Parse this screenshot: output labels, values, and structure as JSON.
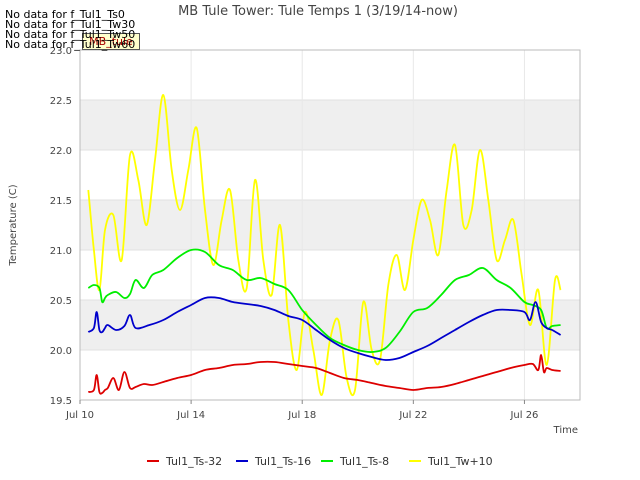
{
  "no_data_notes": [
    "No data for f_Tul1_Ts0",
    "No data for f_Tul1_Tw30",
    "No data for f_Tul1_Tw50",
    "No data for f_Tul1_Tw60"
  ],
  "badge": "MB_tule",
  "chart_data": {
    "type": "line",
    "title": "MB Tule Tower: Tule Temps 1 (3/19/14-now)",
    "xlabel": "Time",
    "ylabel": "Temperature (C)",
    "xlim": [
      10,
      28
    ],
    "ylim": [
      19.5,
      23.0
    ],
    "xtick_values": [
      10,
      14,
      18,
      22,
      26
    ],
    "xtick_labels": [
      "Jul 10",
      "Jul 14",
      "Jul 18",
      "Jul 22",
      "Jul 26"
    ],
    "ytick_values": [
      19.5,
      20.0,
      20.5,
      21.0,
      21.5,
      22.0,
      22.5,
      23.0
    ],
    "ytick_labels": [
      "19.5",
      "20.0",
      "20.5",
      "21.0",
      "21.5",
      "22.0",
      "22.5",
      "23.0"
    ],
    "grid": true,
    "legend_position": "bottom",
    "series": [
      {
        "name": "Tul1_Ts-32",
        "color": "#dd0000",
        "x": [
          10.3,
          10.5,
          10.6,
          10.7,
          10.8,
          10.9,
          11.0,
          11.2,
          11.4,
          11.6,
          11.8,
          12.0,
          12.3,
          12.6,
          13.0,
          13.5,
          14.0,
          14.5,
          15.0,
          15.5,
          16.0,
          16.5,
          17.0,
          17.5,
          18.0,
          18.5,
          19.0,
          19.5,
          20.0,
          20.5,
          21.0,
          21.5,
          22.0,
          22.5,
          23.0,
          23.5,
          24.0,
          24.5,
          25.0,
          25.5,
          26.0,
          26.3,
          26.5,
          26.6,
          26.7,
          26.8,
          27.0,
          27.3
        ],
        "y": [
          19.58,
          19.6,
          19.75,
          19.58,
          19.57,
          19.6,
          19.62,
          19.72,
          19.6,
          19.78,
          19.62,
          19.63,
          19.66,
          19.65,
          19.68,
          19.72,
          19.75,
          19.8,
          19.82,
          19.85,
          19.86,
          19.88,
          19.88,
          19.86,
          19.84,
          19.82,
          19.77,
          19.72,
          19.7,
          19.67,
          19.64,
          19.62,
          19.6,
          19.62,
          19.63,
          19.66,
          19.7,
          19.74,
          19.78,
          19.82,
          19.85,
          19.86,
          19.8,
          19.95,
          19.78,
          19.82,
          19.8,
          19.79
        ]
      },
      {
        "name": "Tul1_Ts-16",
        "color": "#0000cc",
        "x": [
          10.3,
          10.5,
          10.6,
          10.7,
          10.8,
          10.9,
          11.0,
          11.3,
          11.6,
          11.8,
          12.0,
          12.5,
          13.0,
          13.5,
          14.0,
          14.5,
          15.0,
          15.5,
          16.0,
          16.5,
          17.0,
          17.5,
          18.0,
          18.5,
          19.0,
          19.5,
          20.0,
          20.5,
          21.0,
          21.5,
          22.0,
          22.5,
          23.0,
          23.5,
          24.0,
          24.5,
          25.0,
          25.5,
          26.0,
          26.2,
          26.4,
          26.6,
          26.8,
          27.0,
          27.3
        ],
        "y": [
          20.18,
          20.22,
          20.38,
          20.2,
          20.18,
          20.22,
          20.25,
          20.2,
          20.24,
          20.35,
          20.22,
          20.25,
          20.3,
          20.38,
          20.45,
          20.52,
          20.52,
          20.48,
          20.46,
          20.44,
          20.4,
          20.34,
          20.3,
          20.2,
          20.1,
          20.02,
          19.97,
          19.93,
          19.9,
          19.92,
          19.98,
          20.04,
          20.12,
          20.2,
          20.28,
          20.35,
          20.4,
          20.4,
          20.38,
          20.3,
          20.48,
          20.28,
          20.22,
          20.2,
          20.15
        ]
      },
      {
        "name": "Tul1_Ts-8",
        "color": "#00ee00",
        "x": [
          10.3,
          10.5,
          10.7,
          10.8,
          10.9,
          11.0,
          11.3,
          11.6,
          11.8,
          12.0,
          12.3,
          12.6,
          13.0,
          13.5,
          14.0,
          14.5,
          15.0,
          15.5,
          16.0,
          16.5,
          17.0,
          17.5,
          18.0,
          18.5,
          19.0,
          19.5,
          20.0,
          20.5,
          21.0,
          21.5,
          22.0,
          22.5,
          23.0,
          23.5,
          24.0,
          24.5,
          25.0,
          25.5,
          26.0,
          26.3,
          26.6,
          26.8,
          27.0,
          27.3
        ],
        "y": [
          20.62,
          20.65,
          20.62,
          20.48,
          20.52,
          20.55,
          20.58,
          20.52,
          20.56,
          20.7,
          20.62,
          20.75,
          20.8,
          20.92,
          21.0,
          20.98,
          20.85,
          20.8,
          20.7,
          20.72,
          20.66,
          20.6,
          20.4,
          20.25,
          20.12,
          20.05,
          20.0,
          19.98,
          20.02,
          20.18,
          20.38,
          20.42,
          20.55,
          20.7,
          20.75,
          20.82,
          20.7,
          20.62,
          20.48,
          20.45,
          20.4,
          20.22,
          20.24,
          20.25
        ]
      },
      {
        "name": "Tul1_Tw+10",
        "color": "#ffff00",
        "x": [
          10.3,
          10.5,
          10.7,
          10.9,
          11.2,
          11.5,
          11.8,
          12.1,
          12.4,
          12.7,
          13.0,
          13.3,
          13.6,
          13.9,
          14.2,
          14.5,
          14.8,
          15.1,
          15.4,
          15.7,
          16.0,
          16.3,
          16.6,
          16.9,
          17.2,
          17.5,
          17.8,
          18.1,
          18.4,
          18.7,
          19.0,
          19.3,
          19.6,
          19.9,
          20.2,
          20.5,
          20.8,
          21.1,
          21.4,
          21.7,
          22.0,
          22.3,
          22.6,
          22.9,
          23.2,
          23.5,
          23.8,
          24.1,
          24.4,
          24.7,
          25.0,
          25.3,
          25.6,
          25.9,
          26.2,
          26.5,
          26.8,
          27.1,
          27.3
        ],
        "y": [
          21.6,
          21.0,
          20.6,
          21.2,
          21.35,
          20.9,
          21.95,
          21.7,
          21.25,
          21.9,
          22.55,
          21.8,
          21.4,
          21.8,
          22.22,
          21.4,
          20.85,
          21.3,
          21.6,
          20.9,
          20.62,
          21.7,
          20.9,
          20.55,
          21.25,
          20.3,
          19.8,
          20.38,
          20.0,
          19.55,
          20.1,
          20.3,
          19.72,
          19.6,
          20.48,
          20.0,
          19.9,
          20.65,
          20.95,
          20.6,
          21.1,
          21.5,
          21.3,
          20.95,
          21.6,
          22.05,
          21.25,
          21.4,
          22.0,
          21.5,
          20.9,
          21.1,
          21.3,
          20.75,
          20.25,
          20.6,
          19.85,
          20.7,
          20.6
        ]
      }
    ]
  }
}
